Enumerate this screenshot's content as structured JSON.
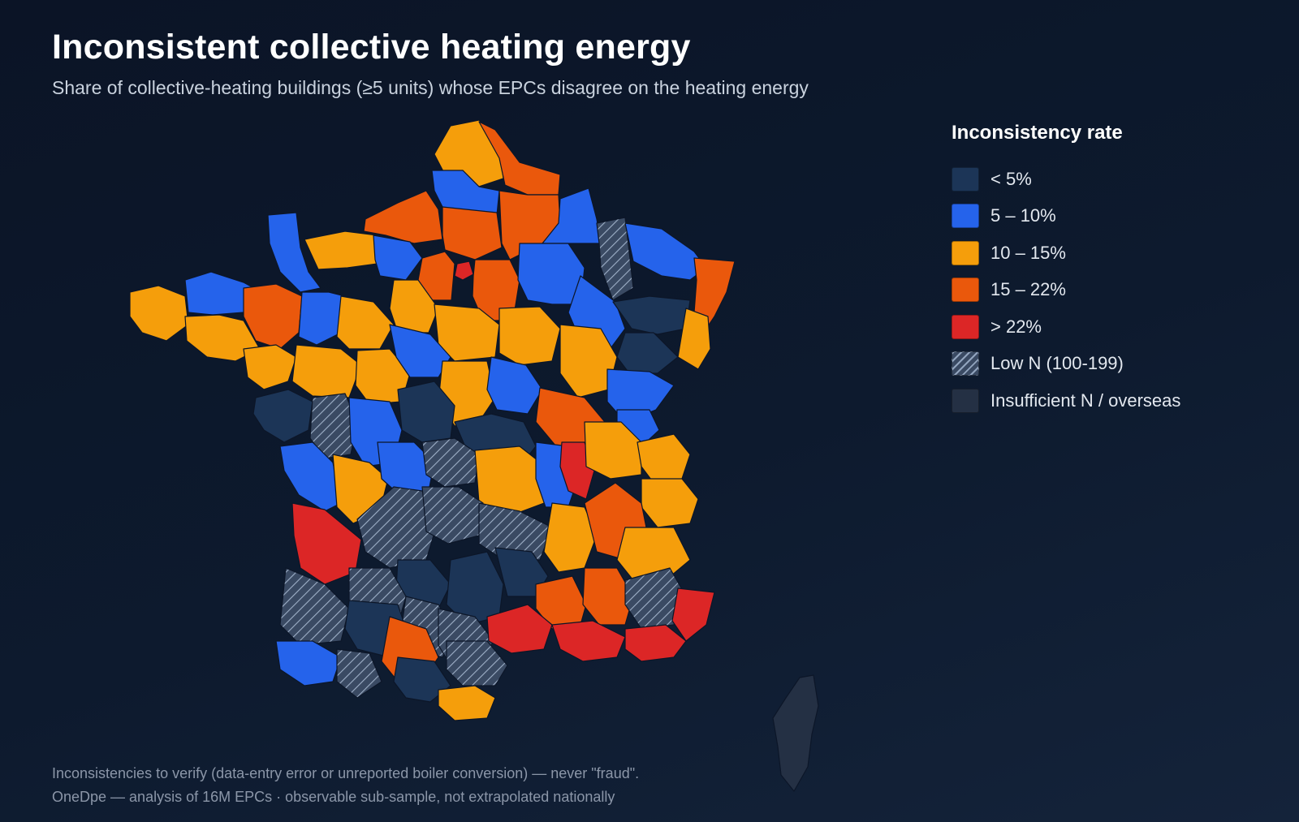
{
  "header": {
    "title": "Inconsistent collective heating energy",
    "subtitle": "Share of collective-heating buildings (≥5 units) whose EPCs disagree on the heating energy"
  },
  "legend": {
    "title": "Inconsistency rate",
    "items": [
      {
        "key": "lt5",
        "label": "< 5%",
        "color": "#1c3557"
      },
      {
        "key": "5to10",
        "label": "5 – 10%",
        "color": "#2563eb"
      },
      {
        "key": "10to15",
        "label": "10 – 15%",
        "color": "#f59e0b"
      },
      {
        "key": "15to22",
        "label": "15 – 22%",
        "color": "#ea580c"
      },
      {
        "key": "gt22",
        "label": "> 22%",
        "color": "#dc2626"
      },
      {
        "key": "lown",
        "label": "Low N (100-199)",
        "color": "#3a4a63",
        "pattern": "hatch"
      },
      {
        "key": "insuf",
        "label": "Insufficient N / overseas",
        "color": "#243044"
      }
    ]
  },
  "footer": {
    "line1": "Inconsistencies to verify (data-entry error or unreported boiler conversion) — never \"fraud\".",
    "line2": "OneDpe — analysis of 16M EPCs · observable sub-sample, not extrapolated nationally"
  }
}
